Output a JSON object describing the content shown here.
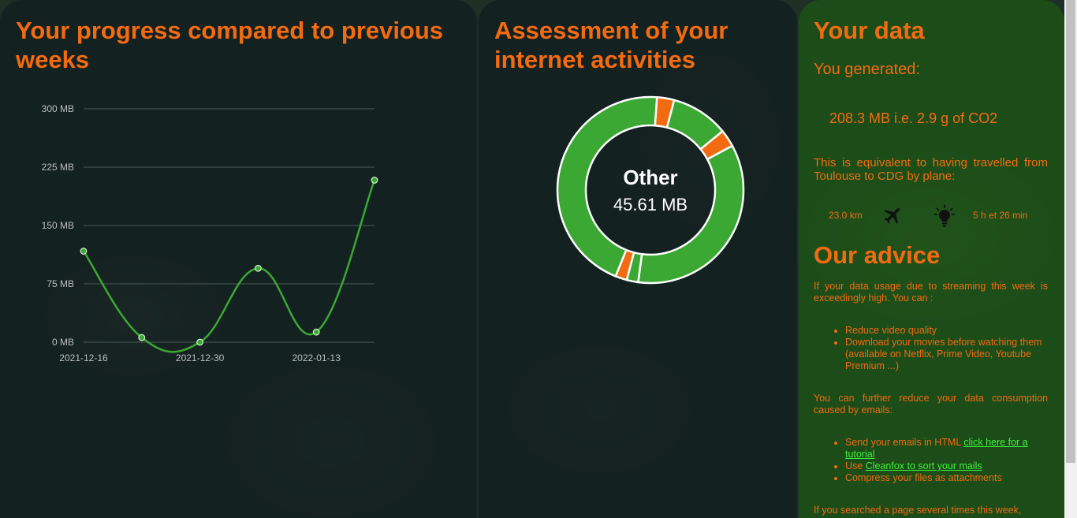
{
  "progress": {
    "title": "Your progress compared to previous weeks"
  },
  "chart_data": {
    "type": "line",
    "title": "",
    "x": [
      "2021-12-16",
      "2021-12-23",
      "2021-12-30",
      "2022-01-06",
      "2022-01-13",
      "2022-01-20"
    ],
    "x_tick_labels": [
      "2021-12-16",
      "2021-12-30",
      "2022-01-13"
    ],
    "series": [
      {
        "values": [
          117,
          6,
          0,
          95,
          13,
          208.3
        ],
        "color": "#3aa832"
      }
    ],
    "y_ticks": [
      "0 MB",
      "75 MB",
      "150 MB",
      "225 MB",
      "300 MB"
    ],
    "ylim": [
      0,
      300
    ],
    "grid": true,
    "xlabel": "",
    "ylabel": ""
  },
  "assessment": {
    "title": "Assessment of your internet activities",
    "center_label": "Other",
    "center_value": "45.61 MB",
    "donut": {
      "segments": [
        {
          "value": 3,
          "color": "#f26b10"
        },
        {
          "value": 10,
          "color": "#3aa832"
        },
        {
          "value": 3,
          "color": "#f26b10"
        },
        {
          "value": 35,
          "color": "#3aa832"
        },
        {
          "value": 2,
          "color": "#3aa832"
        },
        {
          "value": 2,
          "color": "#f26b10"
        },
        {
          "value": 45,
          "color": "#3aa832"
        }
      ]
    }
  },
  "your_data": {
    "title": "Your data",
    "generated_label": "You generated:",
    "generated_value": "208.3 MB i.e. 2.9 g of CO2",
    "equivalent_text": "This is equivalent to having travelled from Toulouse to CDG by plane:",
    "distance": "23.0 km",
    "duration": "5 h et 26 min"
  },
  "advice": {
    "title": "Our advice",
    "streaming_text": "If your data usage due to streaming this week is exceedingly high. You can :",
    "streaming_items": [
      "Reduce video quality",
      "Download your movies before watching them (available on Netflix, Prime Video, Youtube Premium ...)"
    ],
    "email_text": "You can further reduce your data consumption caused by emails:",
    "email_item1_text": "Send your emails in HTML ",
    "email_item1_link": "click here for a tutorial",
    "email_item2_text": "Use ",
    "email_item2_link": "Cleanfox to sort your mails",
    "email_item3_text": "Compress your files as attachments",
    "search_text": "If you searched a page several times this week,"
  },
  "colors": {
    "accent": "#f26b10",
    "green": "#3aa832",
    "link": "#3df23d"
  }
}
